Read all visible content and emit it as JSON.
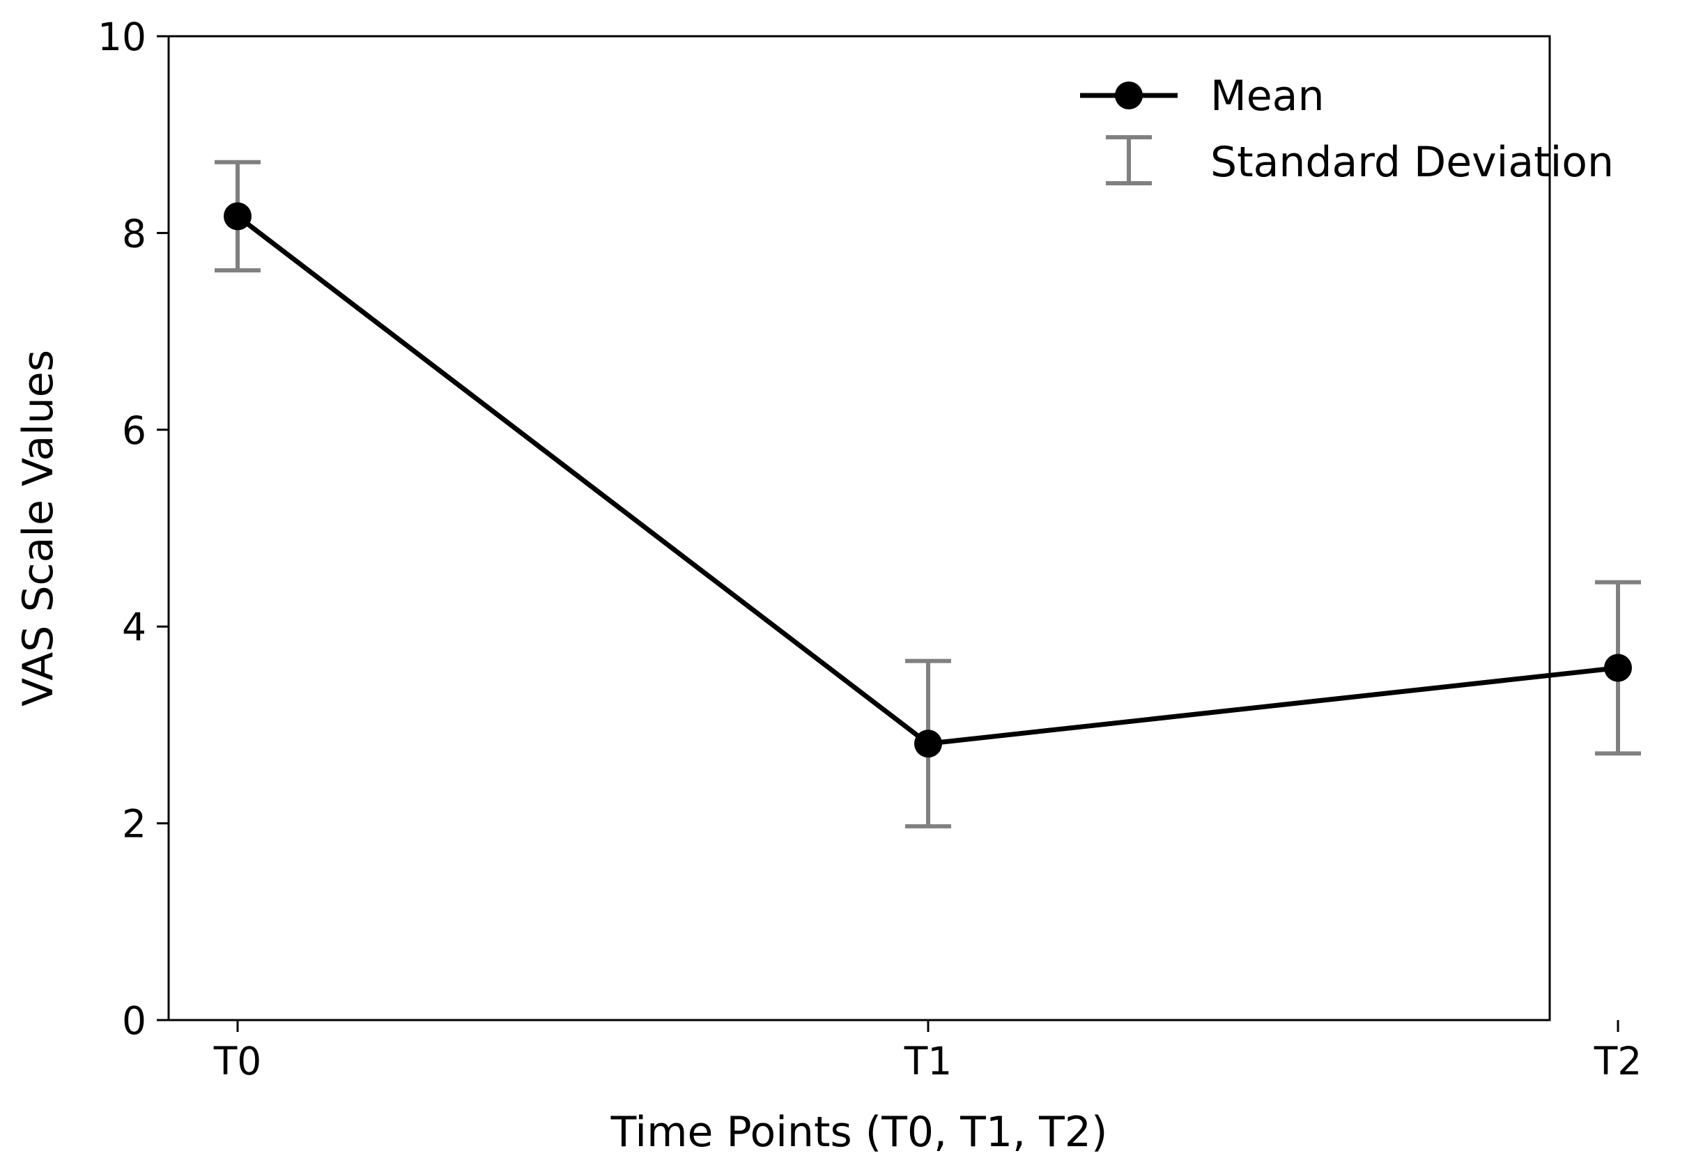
{
  "chart_data": {
    "type": "line",
    "title": "",
    "xlabel": "Time Points (T0, T1, T2)",
    "ylabel": "VAS Scale Values",
    "categories": [
      "T0",
      "T1",
      "T2"
    ],
    "ylim": [
      0,
      10
    ],
    "yticks": [
      "0",
      "2",
      "4",
      "6",
      "8",
      "10"
    ],
    "grid": false,
    "legend_position": "top-right",
    "series": [
      {
        "name": "Mean",
        "values": [
          8.17,
          2.81,
          3.58
        ],
        "color": "#000000",
        "marker": "circle"
      }
    ],
    "error_bars": {
      "name": "Standard Deviation",
      "sd": [
        0.55,
        0.84,
        0.87
      ],
      "color": "#808080"
    },
    "legend": {
      "mean_label": "Mean",
      "sd_label": "Standard Deviation"
    }
  }
}
